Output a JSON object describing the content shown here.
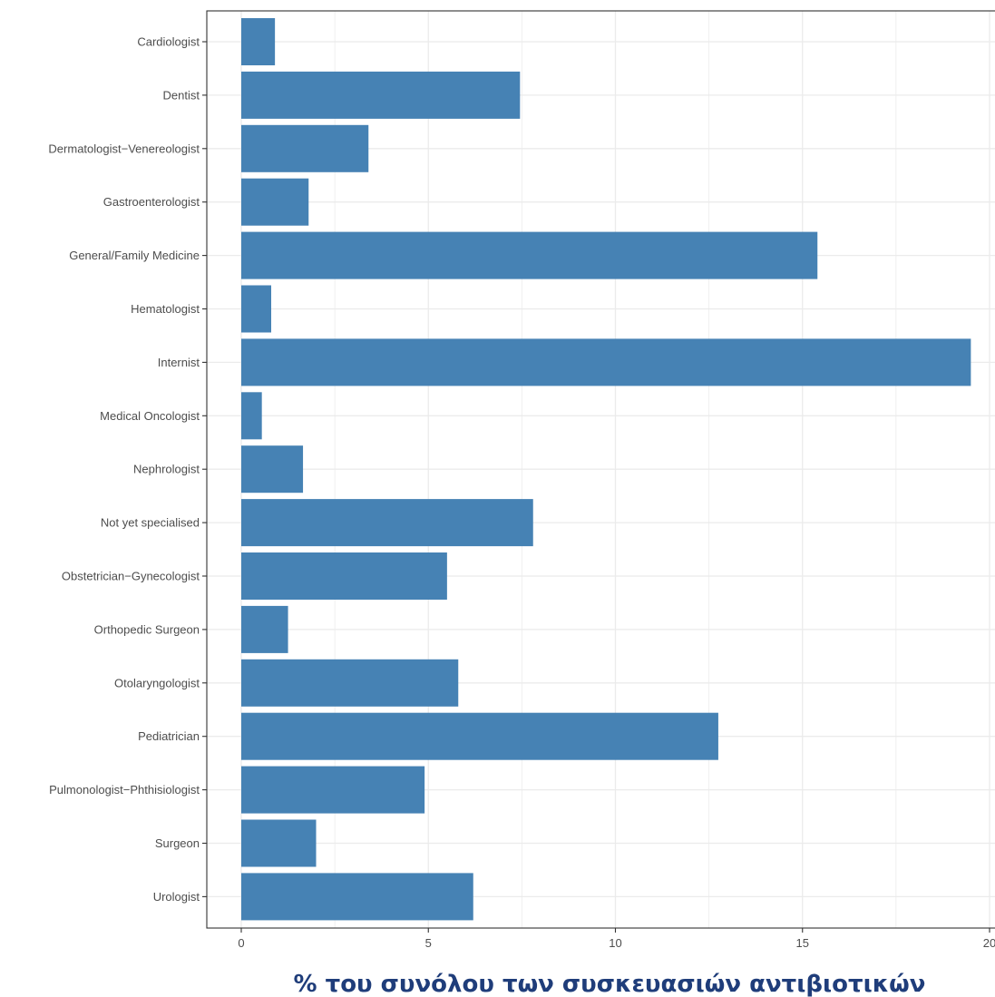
{
  "chart_data": {
    "type": "bar",
    "orientation": "horizontal",
    "categories": [
      "Cardiologist",
      "Dentist",
      "Dermatologist−Venereologist",
      "Gastroenterologist",
      "General/Family Medicine",
      "Hematologist",
      "Internist",
      "Medical Oncologist",
      "Nephrologist",
      "Not yet specialised",
      "Obstetrician−Gynecologist",
      "Orthopedic Surgeon",
      "Otolaryngologist",
      "Pediatrician",
      "Pulmonologist−Phthisiologist",
      "Surgeon",
      "Urologist"
    ],
    "values": [
      0.9,
      7.45,
      3.4,
      1.8,
      15.4,
      0.8,
      19.5,
      0.55,
      1.65,
      7.8,
      5.5,
      1.25,
      5.8,
      12.75,
      4.9,
      2.0,
      6.2
    ],
    "xlabel": "% του συνόλου των συσκευασιών αντιβιοτικών",
    "ylabel": "",
    "xlim": [
      -0.95,
      20
    ],
    "xticks": [
      0,
      5,
      10,
      15,
      20
    ],
    "xtick_labels": [
      "0",
      "5",
      "10",
      "15",
      "20"
    ],
    "grid": true,
    "bar_color": "#4682b4",
    "grid_color": "#ebebeb",
    "panel_border_color": "#333333",
    "title_color": "#1f3d7a"
  }
}
